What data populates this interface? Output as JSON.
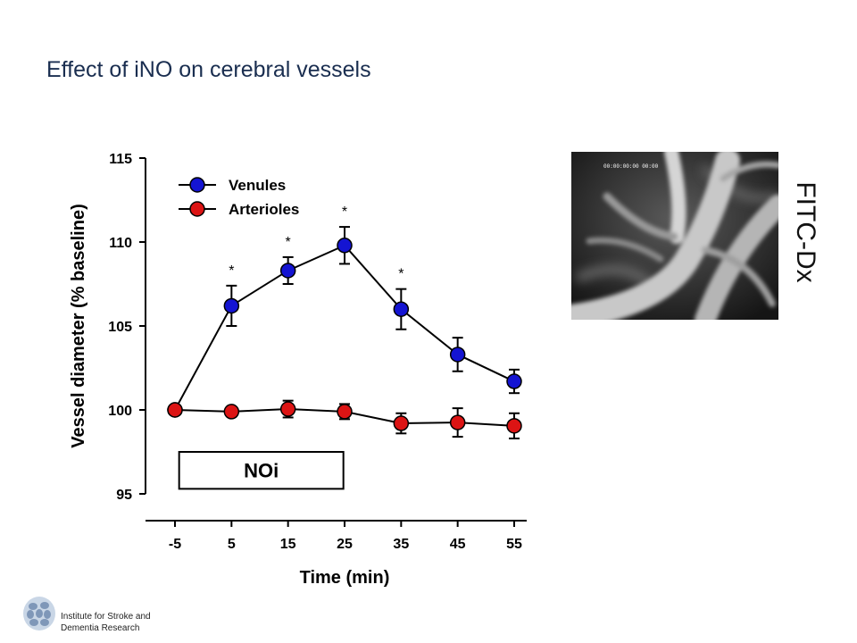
{
  "slide": {
    "title": "Effect of iNO on cerebral vessels",
    "image_label": "FITC-Dx",
    "image_timestamp": "00:00:00:00 00:00",
    "institute_line1": "Institute for Stroke and",
    "institute_line2": "Dementia Research"
  },
  "chart_data": {
    "type": "line",
    "title": "",
    "xlabel": "Time (min)",
    "ylabel": "Vessel diameter (% baseline)",
    "x": [
      -5,
      5,
      15,
      25,
      35,
      45,
      55
    ],
    "x_tick_labels": [
      "-5",
      "5",
      "15",
      "25",
      "35",
      "45",
      "55"
    ],
    "ylim": [
      95,
      115
    ],
    "y_ticks": [
      95,
      100,
      105,
      110,
      115
    ],
    "y_tick_labels": [
      "95",
      "100",
      "105",
      "110",
      "115"
    ],
    "legend_position": "top-left",
    "grid": false,
    "series": [
      {
        "name": "Venules",
        "color": "#1414d2",
        "values": [
          100.0,
          106.2,
          108.3,
          109.8,
          106.0,
          103.3,
          101.7
        ],
        "errors": [
          0.0,
          1.2,
          0.8,
          1.1,
          1.2,
          1.0,
          0.7
        ],
        "significant": [
          false,
          true,
          true,
          true,
          true,
          false,
          false
        ]
      },
      {
        "name": "Arterioles",
        "color": "#dc1414",
        "values": [
          100.0,
          99.9,
          100.05,
          99.9,
          99.2,
          99.25,
          99.05
        ],
        "errors": [
          0.0,
          0.0,
          0.5,
          0.45,
          0.6,
          0.85,
          0.75
        ],
        "significant": [
          false,
          false,
          false,
          false,
          false,
          false,
          false
        ]
      }
    ],
    "significance_marker": "*",
    "annotation": {
      "text": "NOi",
      "x_start": 0,
      "x_end": 30,
      "y_top": 97.5,
      "y_bottom": 95.3
    }
  }
}
